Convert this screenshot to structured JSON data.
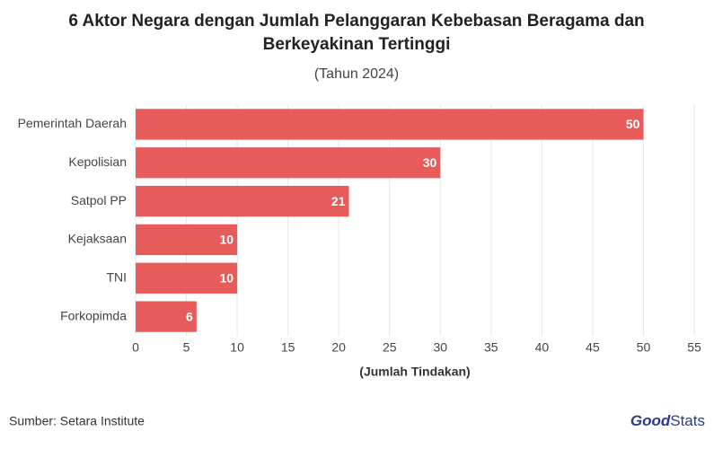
{
  "chart_data": {
    "type": "bar",
    "orientation": "horizontal",
    "title": [
      "6 Aktor Negara dengan Jumlah Pelanggaran Kebebasan Beragama dan",
      "Berkeyakinan Tertinggi"
    ],
    "subtitle": "(Tahun 2024)",
    "x_label": "(Jumlah Tindakan)",
    "categories": [
      "Pemerintah Daerah",
      "Kepolisian",
      "Satpol PP",
      "Kejaksaan",
      "TNI",
      "Forkopimda"
    ],
    "values": [
      50,
      30,
      21,
      10,
      10,
      6
    ],
    "color": "#e85b5b",
    "xlim": [
      0,
      55
    ],
    "xticks": [
      0,
      5,
      10,
      15,
      20,
      25,
      30,
      35,
      40,
      45,
      50,
      55
    ],
    "grid": true,
    "source": "Sumber: Setara Institute",
    "brand": [
      "Good",
      "Stats"
    ]
  }
}
